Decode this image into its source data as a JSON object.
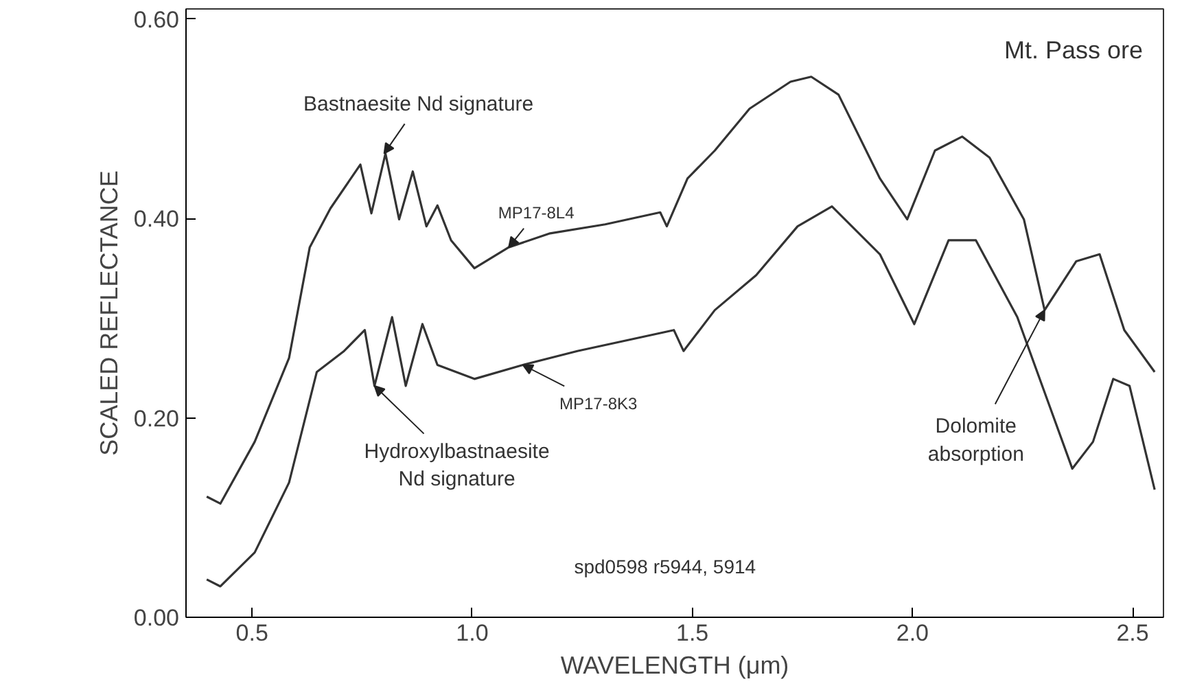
{
  "chart_data": {
    "type": "line",
    "xlabel": "WAVELENGTH (μm)",
    "ylabel": "SCALED REFLECTANCE",
    "xlim": [
      0.35,
      2.57
    ],
    "ylim": [
      0,
      0.61
    ],
    "xticks": [
      {
        "value": 0.5,
        "label": "0.5"
      },
      {
        "value": 1.0,
        "label": "1.0"
      },
      {
        "value": 1.5,
        "label": "1.5"
      },
      {
        "value": 2.0,
        "label": "2.0"
      },
      {
        "value": 2.5,
        "label": "2.5"
      }
    ],
    "yticks": [
      {
        "value": 0,
        "label": "0.00"
      },
      {
        "value": 0.2,
        "label": "0.20"
      },
      {
        "value": 0.4,
        "label": "0.40"
      },
      {
        "value": 0.6,
        "label": "0.60"
      }
    ],
    "grid": false,
    "marker": "none",
    "line_style": "solid",
    "series": [
      {
        "name": "MP17-8L4",
        "color": "#333333",
        "x": [
          0.397,
          0.428,
          0.506,
          0.584,
          0.631,
          0.678,
          0.746,
          0.771,
          0.803,
          0.834,
          0.865,
          0.896,
          0.921,
          0.952,
          1.005,
          1.083,
          1.177,
          1.302,
          1.427,
          1.442,
          1.489,
          1.551,
          1.63,
          1.723,
          1.77,
          1.832,
          1.926,
          1.988,
          2.051,
          2.113,
          2.175,
          2.253,
          2.3,
          2.372,
          2.425,
          2.481,
          2.55
        ],
        "values": [
          0.121,
          0.114,
          0.176,
          0.26,
          0.371,
          0.41,
          0.454,
          0.405,
          0.465,
          0.399,
          0.447,
          0.392,
          0.413,
          0.378,
          0.35,
          0.371,
          0.385,
          0.394,
          0.406,
          0.392,
          0.44,
          0.468,
          0.51,
          0.537,
          0.542,
          0.524,
          0.44,
          0.399,
          0.468,
          0.482,
          0.461,
          0.399,
          0.308,
          0.357,
          0.364,
          0.288,
          0.246
        ]
      },
      {
        "name": "MP17-8K3",
        "color": "#333333",
        "x": [
          0.397,
          0.428,
          0.506,
          0.584,
          0.647,
          0.709,
          0.756,
          0.778,
          0.818,
          0.849,
          0.887,
          0.921,
          1.005,
          1.115,
          1.239,
          1.458,
          1.48,
          1.551,
          1.645,
          1.739,
          1.817,
          1.926,
          2.004,
          2.082,
          2.144,
          2.238,
          2.363,
          2.41,
          2.456,
          2.493,
          2.55
        ],
        "values": [
          0.038,
          0.031,
          0.065,
          0.135,
          0.246,
          0.267,
          0.288,
          0.232,
          0.301,
          0.232,
          0.294,
          0.253,
          0.239,
          0.253,
          0.267,
          0.288,
          0.267,
          0.308,
          0.343,
          0.392,
          0.412,
          0.364,
          0.294,
          0.378,
          0.378,
          0.301,
          0.149,
          0.176,
          0.239,
          0.232,
          0.128
        ]
      }
    ],
    "annotations": [
      {
        "text": "Bastnaesite Nd signature",
        "x": 0.8,
        "y": 0.465
      },
      {
        "text": "Hydroxylbastnaesite\nNd signature",
        "x": 0.778,
        "y": 0.232
      },
      {
        "text": "Dolomite\nabsorption",
        "x": 2.3,
        "y": 0.308
      },
      "Mt. Pass ore",
      "spd0598 r5944, 5914"
    ]
  }
}
